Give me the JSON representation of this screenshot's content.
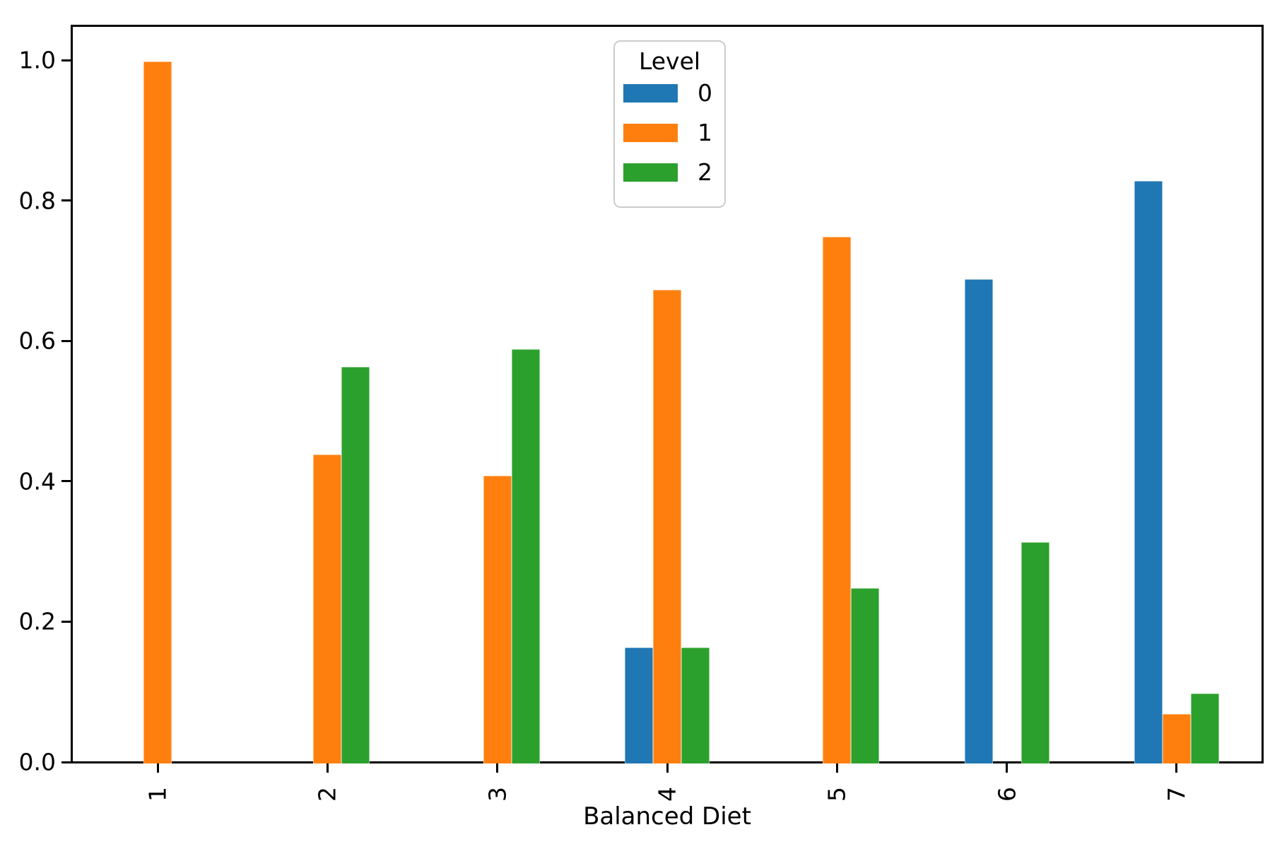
{
  "chart_data": {
    "type": "bar",
    "title": "",
    "xlabel": "Balanced Diet",
    "ylabel": "",
    "categories": [
      "1",
      "2",
      "3",
      "4",
      "5",
      "6",
      "7"
    ],
    "series": [
      {
        "name": "0",
        "color": "#1f77b4",
        "values": [
          0,
          0,
          0,
          0.165,
          0,
          0.69,
          0.83
        ]
      },
      {
        "name": "1",
        "color": "#ff7f0e",
        "values": [
          1.0,
          0.44,
          0.41,
          0.675,
          0.75,
          0,
          0.07
        ]
      },
      {
        "name": "2",
        "color": "#2ca02c",
        "values": [
          0,
          0.565,
          0.59,
          0.165,
          0.25,
          0.315,
          0.1
        ]
      }
    ],
    "legend": {
      "title": "Level",
      "entries": [
        "0",
        "1",
        "2"
      ],
      "position": "upper center"
    },
    "y_ticks": [
      "0.0",
      "0.2",
      "0.4",
      "0.6",
      "0.8",
      "1.0"
    ],
    "ylim": [
      0,
      1.05
    ],
    "grid": false,
    "axis_color": "#000000",
    "background": "#ffffff"
  }
}
